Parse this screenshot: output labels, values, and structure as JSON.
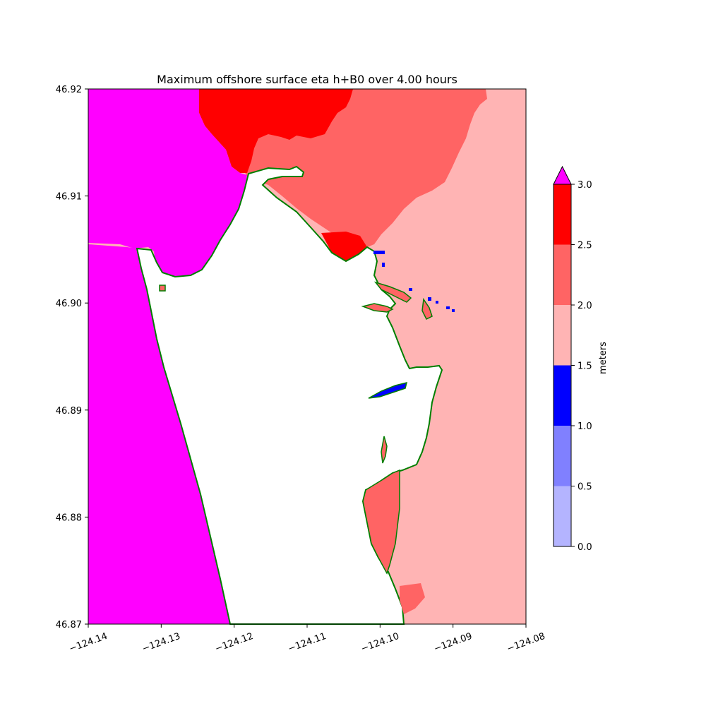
{
  "chart_data": {
    "type": "heatmap",
    "title": "Maximum offshore surface eta h+B0 over 4.00 hours",
    "xlim": [
      -124.14,
      -124.08
    ],
    "ylim": [
      46.87,
      46.92
    ],
    "x_ticks": [
      {
        "value": -124.14,
        "label": "−124.14"
      },
      {
        "value": -124.13,
        "label": "−124.13"
      },
      {
        "value": -124.12,
        "label": "−124.12"
      },
      {
        "value": -124.11,
        "label": "−124.11"
      },
      {
        "value": -124.1,
        "label": "−124.10"
      },
      {
        "value": -124.09,
        "label": "−124.09"
      },
      {
        "value": -124.08,
        "label": "−124.08"
      }
    ],
    "y_ticks": [
      {
        "value": 46.87,
        "label": "46.87"
      },
      {
        "value": 46.88,
        "label": "46.88"
      },
      {
        "value": 46.89,
        "label": "46.89"
      },
      {
        "value": 46.9,
        "label": "46.90"
      },
      {
        "value": 46.91,
        "label": "46.91"
      },
      {
        "value": 46.92,
        "label": "46.92"
      }
    ],
    "grid": false,
    "colorbar": {
      "label": "meters",
      "placement": "right",
      "extend": "max",
      "bounds": [
        0.0,
        0.5,
        1.0,
        1.5,
        2.0,
        2.5,
        3.0
      ],
      "tick_labels": [
        "0.0",
        "0.5",
        "1.0",
        "1.5",
        "2.0",
        "2.5",
        "3.0"
      ],
      "colors": [
        "#b4b4ff",
        "#8080ff",
        "#0000ff",
        "#ffb4b4",
        "#ff6464",
        "#ff0000"
      ],
      "over_color": "#ff00ff"
    },
    "shoreline_color": "#007f00",
    "land_color": "#ffffff"
  }
}
